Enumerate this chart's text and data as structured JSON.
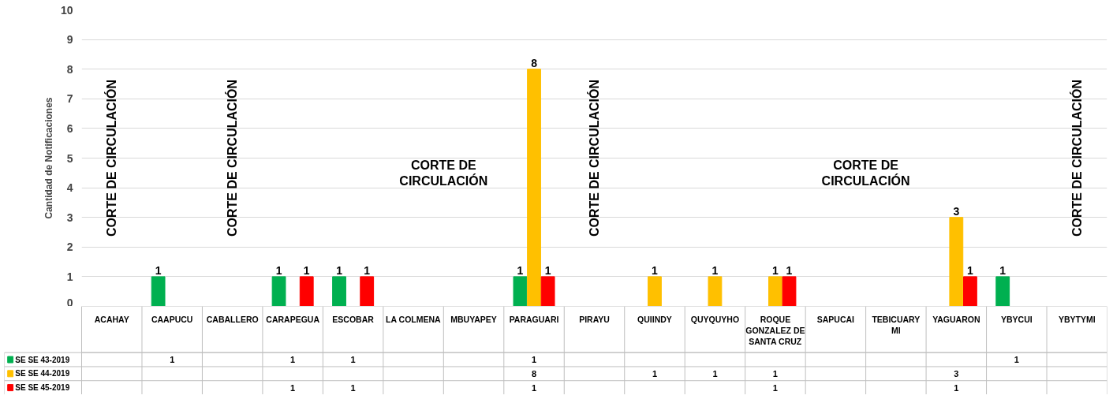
{
  "chart_data": {
    "type": "bar",
    "ylabel": "Cantidad de Notificaciones",
    "categories": [
      "ACAHAY",
      "CAAPUCU",
      "CABALLERO",
      "CARAPEGUA",
      "ESCOBAR",
      "LA COLMENA",
      "MBUYAPEY",
      "PARAGUARI",
      "PIRAYU",
      "QUIINDY",
      "QUYQUYHO",
      "ROQUE GONZALEZ DE SANTA CRUZ",
      "SAPUCAI",
      "TEBICUARY MI",
      "YAGUARON",
      "YBYCUI",
      "YBYTYMI"
    ],
    "series": [
      {
        "name": "SE SE 43-2019",
        "color": "#00b050",
        "values": [
          null,
          1,
          null,
          1,
          1,
          null,
          null,
          1,
          null,
          null,
          null,
          null,
          null,
          null,
          null,
          1,
          null
        ],
        "value_labels": [
          null,
          "1",
          null,
          "1",
          "1",
          null,
          null,
          "1",
          null,
          null,
          null,
          null,
          null,
          null,
          null,
          "1",
          null
        ]
      },
      {
        "name": "SE SE 44-2019",
        "color": "#ffc000",
        "values": [
          null,
          null,
          null,
          null,
          null,
          null,
          null,
          8,
          null,
          1,
          1,
          1,
          null,
          null,
          3,
          null,
          null
        ],
        "value_labels": [
          null,
          null,
          null,
          null,
          null,
          null,
          null,
          "8",
          null,
          "1",
          "1",
          "1",
          null,
          null,
          "3",
          null,
          null
        ]
      },
      {
        "name": "SE SE 45-2019",
        "color": "#ff0000",
        "values": [
          null,
          null,
          null,
          1,
          1,
          null,
          null,
          1,
          null,
          null,
          null,
          1,
          null,
          null,
          1,
          null,
          null
        ],
        "value_labels": [
          null,
          null,
          null,
          "1",
          "1",
          null,
          null,
          "1",
          null,
          null,
          null,
          "1",
          null,
          null,
          "1",
          null,
          null
        ]
      }
    ],
    "ylim": [
      0,
      10
    ],
    "yticks": [
      0,
      1,
      2,
      3,
      4,
      5,
      6,
      7,
      8,
      9,
      10
    ],
    "grid": "y",
    "data_labels": true,
    "legend": "bottom",
    "annotations": [
      "CORTE DE CIRCULACIÓN",
      "CORTE DE CIRCULACIÓN",
      "CORTE DE\nCIRCULACIÓN",
      "CORTE DE CIRCULACIÓN",
      "CORTE DE\nCIRCULACIÓN",
      "CORTE DE CIRCULACIÓN"
    ]
  }
}
